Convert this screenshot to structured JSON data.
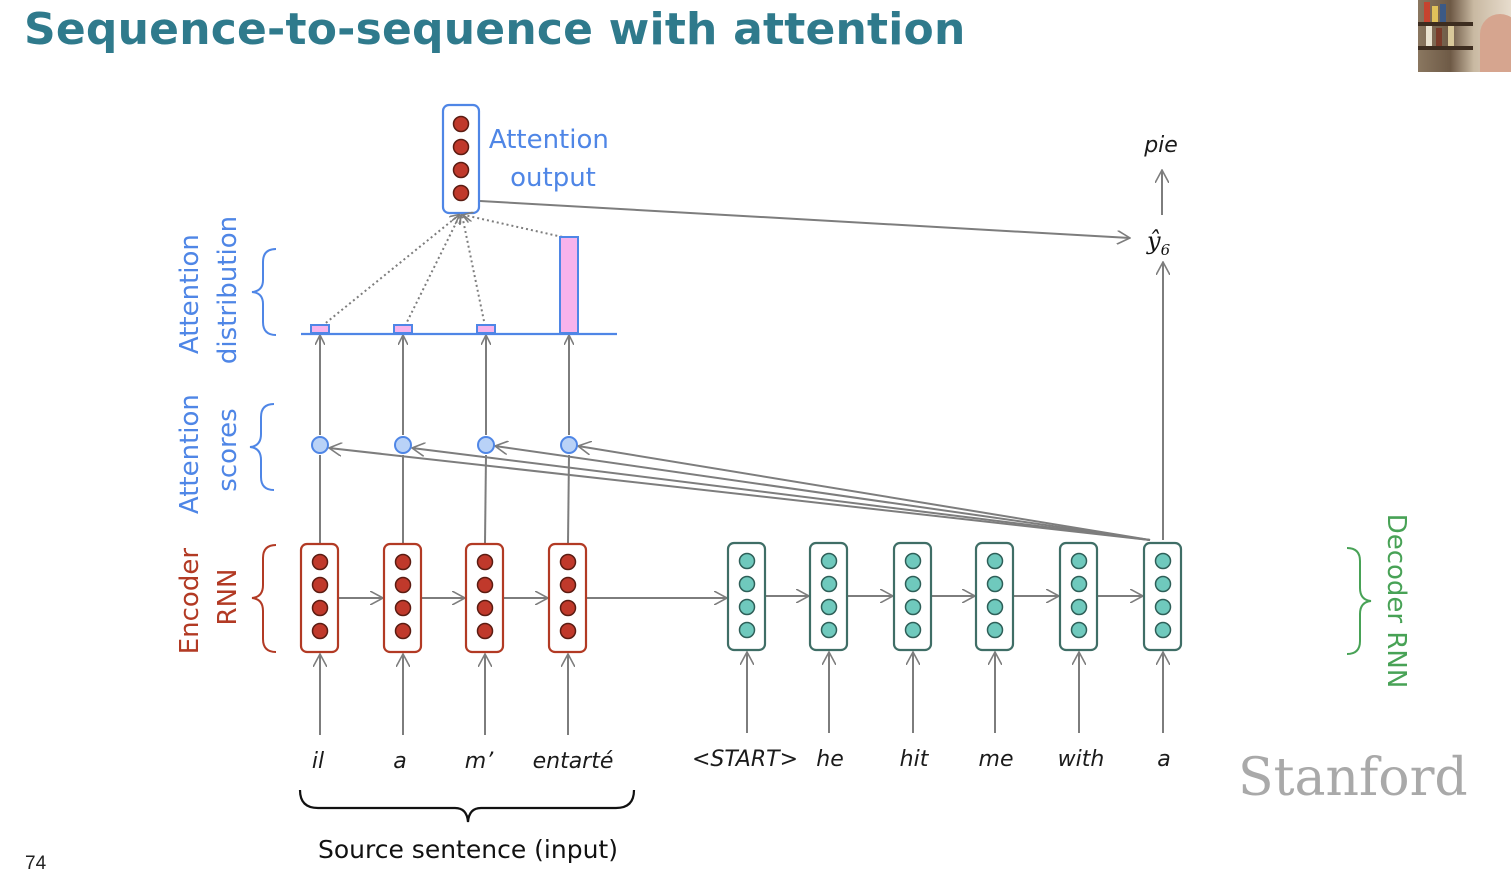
{
  "slide": {
    "title": "Sequence-to-sequence with attention",
    "page_number": "74",
    "watermark": "Stanford"
  },
  "labels": {
    "attention_output": [
      "Attention",
      "output"
    ],
    "attention_distribution": [
      "Attention",
      "distribution"
    ],
    "attention_scores": [
      "Attention",
      "scores"
    ],
    "encoder_rnn": [
      "Encoder",
      "RNN"
    ],
    "decoder_rnn": "Decoder RNN",
    "source_sentence": "Source sentence (input)",
    "output_word": "pie",
    "output_symbol": "ŷ",
    "output_subscript": "6"
  },
  "source_words": [
    "il",
    "a",
    "m’",
    "entarté"
  ],
  "target_words": [
    "<START>",
    "he",
    "hit",
    "me",
    "with",
    "a"
  ],
  "attention_weights": [
    0.08,
    0.08,
    0.08,
    0.96
  ],
  "colors": {
    "title": "#2f7a8c",
    "encoder": "#b23a24",
    "decoder": "#3f8a80",
    "attention": "#4f86e6",
    "distribution_bar": "#f7b3ec",
    "decoder_label": "#48a256",
    "arrows": "#7d7d7d"
  }
}
